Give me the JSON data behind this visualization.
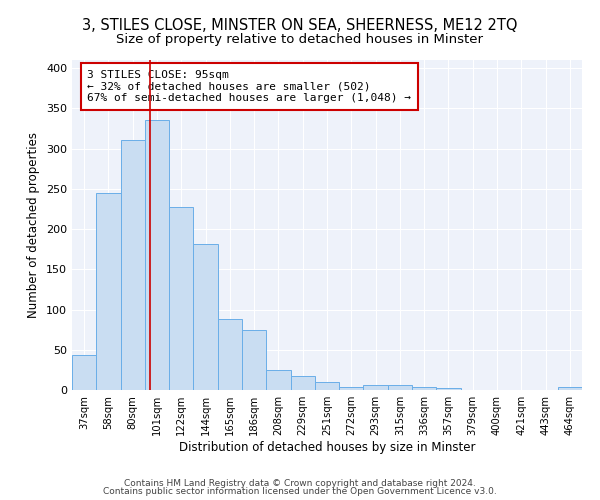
{
  "title1": "3, STILES CLOSE, MINSTER ON SEA, SHEERNESS, ME12 2TQ",
  "title2": "Size of property relative to detached houses in Minster",
  "xlabel": "Distribution of detached houses by size in Minster",
  "ylabel": "Number of detached properties",
  "bar_labels": [
    "37sqm",
    "58sqm",
    "80sqm",
    "101sqm",
    "122sqm",
    "144sqm",
    "165sqm",
    "186sqm",
    "208sqm",
    "229sqm",
    "251sqm",
    "272sqm",
    "293sqm",
    "315sqm",
    "336sqm",
    "357sqm",
    "379sqm",
    "400sqm",
    "421sqm",
    "443sqm",
    "464sqm"
  ],
  "bar_values": [
    44,
    245,
    311,
    335,
    227,
    181,
    88,
    75,
    25,
    17,
    10,
    4,
    6,
    6,
    4,
    2,
    0,
    0,
    0,
    0,
    4
  ],
  "bar_color": "#c9ddf2",
  "bar_edge_color": "#6aaee8",
  "vline_pos": 2.72,
  "vline_color": "#cc0000",
  "annotation_title": "3 STILES CLOSE: 95sqm",
  "annotation_line1": "← 32% of detached houses are smaller (502)",
  "annotation_line2": "67% of semi-detached houses are larger (1,048) →",
  "annotation_box_edge": "#cc0000",
  "ylim": [
    0,
    410
  ],
  "yticks": [
    0,
    50,
    100,
    150,
    200,
    250,
    300,
    350,
    400
  ],
  "footnote1": "Contains HM Land Registry data © Crown copyright and database right 2024.",
  "footnote2": "Contains public sector information licensed under the Open Government Licence v3.0.",
  "bg_color": "#eef2fa",
  "grid_color": "#ffffff",
  "title1_fontsize": 10.5,
  "title2_fontsize": 9.5,
  "annotation_fontsize": 8,
  "footnote_fontsize": 6.5
}
